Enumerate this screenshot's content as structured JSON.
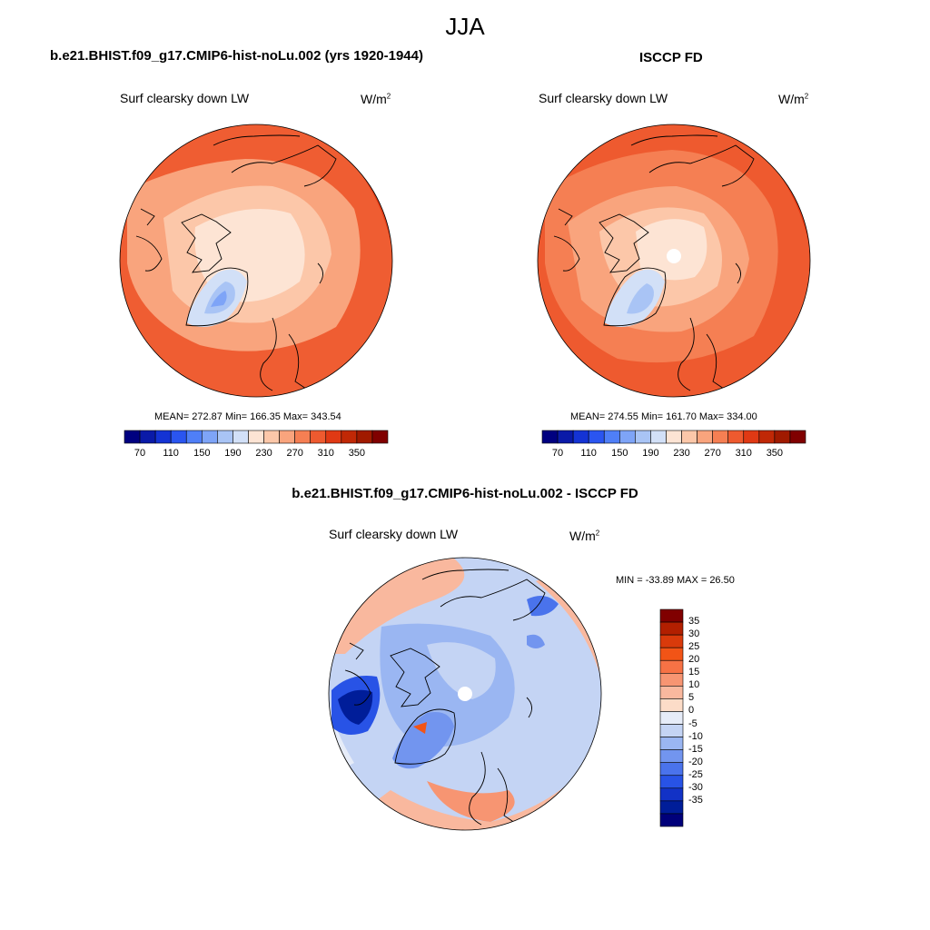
{
  "figure_title": "JJA",
  "panels": [
    {
      "title": "b.e21.BHIST.f09_g17.CMIP6-hist-noLu.002 (yrs 1920-1944)",
      "variable": "Surf clearsky down LW",
      "units": "W/m",
      "units_exp": "2",
      "stats": "MEAN= 272.87  Min= 166.35  Max= 343.54",
      "mean": 272.87,
      "min": 166.35,
      "max": 343.54
    },
    {
      "title": "ISCCP FD",
      "variable": "Surf clearsky down LW",
      "units": "W/m",
      "units_exp": "2",
      "stats": "MEAN= 274.55  Min= 161.70  Max= 334.00",
      "mean": 274.55,
      "min": 161.7,
      "max": 334.0
    },
    {
      "title": "b.e21.BHIST.f09_g17.CMIP6-hist-noLu.002 - ISCCP FD",
      "variable": "Surf clearsky down LW",
      "units": "W/m",
      "units_exp": "2",
      "stats": "MIN = -33.89 MAX =  26.50",
      "min": -33.89,
      "max": 26.5
    }
  ],
  "colorbar_abs": {
    "tick_labels": [
      "70",
      "110",
      "150",
      "190",
      "230",
      "270",
      "310",
      "350"
    ],
    "colors": [
      "#000080",
      "#0a1aa8",
      "#1433d4",
      "#2a55f0",
      "#4f7ff7",
      "#7ea4f7",
      "#a9c4f5",
      "#d2e0f7",
      "#fde4d4",
      "#fcc7a9",
      "#f9a47d",
      "#f57f53",
      "#ee5a2f",
      "#e03914",
      "#c02806",
      "#a01a00",
      "#800000"
    ]
  },
  "colorbar_diff": {
    "tick_labels": [
      "35",
      "30",
      "25",
      "20",
      "15",
      "10",
      "5",
      "0",
      "-5",
      "-10",
      "-15",
      "-20",
      "-25",
      "-30",
      "-35"
    ],
    "colors": [
      "#800000",
      "#b21f00",
      "#d93a0b",
      "#f25416",
      "#f77245",
      "#f79572",
      "#f9b89e",
      "#fcdcc8",
      "#e6ecf8",
      "#c4d4f4",
      "#9ab6f2",
      "#7295ef",
      "#4a73ec",
      "#2853e6",
      "#1232c6",
      "#001d99",
      "#00007a"
    ]
  }
}
